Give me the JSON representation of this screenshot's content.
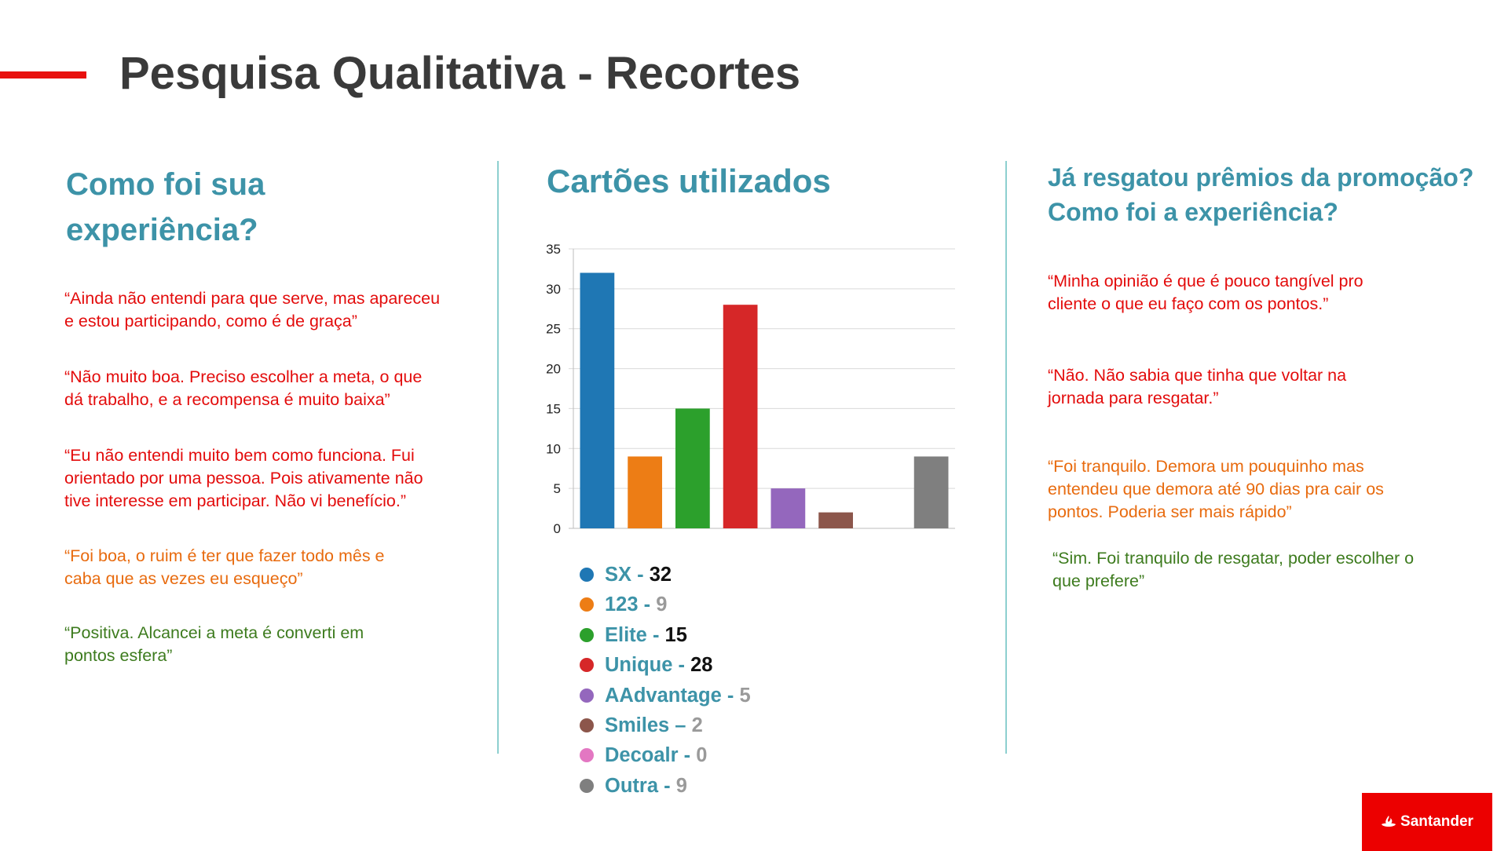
{
  "title": "Pesquisa Qualitativa - Recortes",
  "colors": {
    "accent": "#e8100e",
    "heading": "#3d93a8",
    "red": "#e30c0c",
    "orange": "#e86b0f",
    "green": "#3d7b1e"
  },
  "left": {
    "heading_line1": "Como foi sua",
    "heading_line2": "experiência?",
    "quotes": [
      {
        "line1": "“Ainda não entendi para que serve, mas apareceu",
        "line2": "e estou participando, como é de graça”",
        "line3": ""
      },
      {
        "line1": "“Não muito boa. Preciso escolher a meta, o que",
        "line2": "dá trabalho, e a recompensa é muito baixa”",
        "line3": ""
      },
      {
        "line1": "“Eu não entendi muito bem como funciona. Fui",
        "line2": "orientado por uma pessoa. Pois ativamente não",
        "line3": "tive interesse em participar. Não vi benefício.”"
      },
      {
        "line1": "“Foi boa, o ruim é ter que fazer todo mês e",
        "line2": "caba que as vezes eu esqueço”",
        "line3": ""
      },
      {
        "line1": "“Positiva. Alcancei a meta é converti em",
        "line2": "pontos esfera”",
        "line3": ""
      }
    ]
  },
  "middle": {
    "heading": "Cartões utilizados",
    "legend": [
      {
        "name": "SX",
        "sep": " - ",
        "value": "32",
        "color": "#1f77b4"
      },
      {
        "name": "123",
        "sep": " - ",
        "value": "9",
        "color": "#ed7d15"
      },
      {
        "name": "Elite",
        "sep": " - ",
        "value": "15",
        "color": "#2ca02c"
      },
      {
        "name": "Unique",
        "sep": " - ",
        "value": "28",
        "color": "#d62728"
      },
      {
        "name": "AAdvantage",
        "sep": " - ",
        "value": "5",
        "color": "#9467bd"
      },
      {
        "name": "Smiles",
        "sep": " – ",
        "value": "2",
        "color": "#8c564b"
      },
      {
        "name": "Decoalr",
        "sep": " - ",
        "value": "0",
        "color": "#e377c2"
      },
      {
        "name": "Outra",
        "sep": " - ",
        "value": "9",
        "color": "#7f7f7f"
      }
    ]
  },
  "right": {
    "heading_line1": "Já resgatou prêmios da promoção?",
    "heading_line2": "Como foi a experiência?",
    "quotes": [
      {
        "line1": "“Minha opinião é que é pouco tangível pro",
        "line2": "cliente o que eu faço com os pontos.”",
        "line3": ""
      },
      {
        "line1": "“Não. Não sabia que tinha que voltar na",
        "line2": "jornada para resgatar.”",
        "line3": ""
      },
      {
        "line1": "“Foi tranquilo. Demora um pouquinho mas",
        "line2": "entendeu que demora até 90 dias pra cair os",
        "line3": "pontos. Poderia ser mais rápido”"
      },
      {
        "line1": "“Sim. Foi tranquilo de resgatar, poder escolher o",
        "line2": "que prefere”",
        "line3": ""
      }
    ]
  },
  "chart_data": {
    "type": "bar",
    "title": "Cartões utilizados",
    "categories": [
      "SX",
      "123",
      "Elite",
      "Unique",
      "AAdvantage",
      "Smiles",
      "Decoalr",
      "Outra"
    ],
    "values": [
      32,
      9,
      15,
      28,
      5,
      2,
      0,
      9
    ],
    "colors": [
      "#1f77b4",
      "#ed7d15",
      "#2ca02c",
      "#d62728",
      "#9467bd",
      "#8c564b",
      "#e377c2",
      "#7f7f7f"
    ],
    "ylim": [
      0,
      35
    ],
    "yticks": [
      "0",
      "5",
      "10",
      "15",
      "20",
      "25",
      "30",
      "35"
    ],
    "grid": true,
    "xlabel": "",
    "ylabel": ""
  },
  "logo": {
    "text": "Santander"
  }
}
